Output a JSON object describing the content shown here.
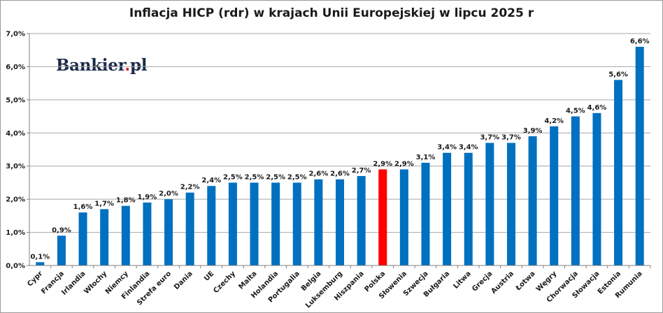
{
  "brand": {
    "name": "Bankier",
    "dot": ".",
    "suffix": "pl"
  },
  "chart_data": {
    "type": "bar",
    "title": "Inflacja HICP (rdr) w krajach Unii Europejskiej w lipcu 2025 r",
    "categories": [
      "Cypr",
      "Francja",
      "Irlandia",
      "Włochy",
      "Niemcy",
      "Finlandia",
      "Strefa euro",
      "Dania",
      "UE",
      "Czechy",
      "Malta",
      "Holandia",
      "Portugalia",
      "Belgia",
      "Luksemburg",
      "Hiszpania",
      "Polska",
      "Słowenia",
      "Szwecja",
      "Bułgaria",
      "Litwa",
      "Grecja",
      "Austria",
      "Łotwa",
      "Węgry",
      "Chorwacja",
      "Słowacja",
      "Estonia",
      "Rumunia"
    ],
    "values": [
      0.1,
      0.9,
      1.6,
      1.7,
      1.8,
      1.9,
      2.0,
      2.2,
      2.4,
      2.5,
      2.5,
      2.5,
      2.5,
      2.6,
      2.6,
      2.7,
      2.9,
      2.9,
      3.1,
      3.4,
      3.4,
      3.7,
      3.7,
      3.9,
      4.2,
      4.5,
      4.6,
      5.6,
      6.6
    ],
    "data_labels": [
      "0,1%",
      "0,9%",
      "1,6%",
      "1,7%",
      "1,8%",
      "1,9%",
      "2,0%",
      "2,2%",
      "2,4%",
      "2,5%",
      "2,5%",
      "2,5%",
      "2,5%",
      "2,6%",
      "2,6%",
      "2,7%",
      "2,9%",
      "2,9%",
      "3,1%",
      "3,4%",
      "3,4%",
      "3,7%",
      "3,7%",
      "3,9%",
      "4,2%",
      "4,5%",
      "4,6%",
      "5,6%",
      "6,6%"
    ],
    "highlight_category": "Polska",
    "ylim": [
      0,
      7
    ],
    "yticks": [
      0,
      1,
      2,
      3,
      4,
      5,
      6,
      7
    ],
    "ytick_labels": [
      "0,0%",
      "1,0%",
      "2,0%",
      "3,0%",
      "4,0%",
      "5,0%",
      "6,0%",
      "7,0%"
    ],
    "grid": true,
    "colors": {
      "bar": "#0070c0",
      "highlight": "#ff0000",
      "grid": "#a6a6a6"
    }
  }
}
